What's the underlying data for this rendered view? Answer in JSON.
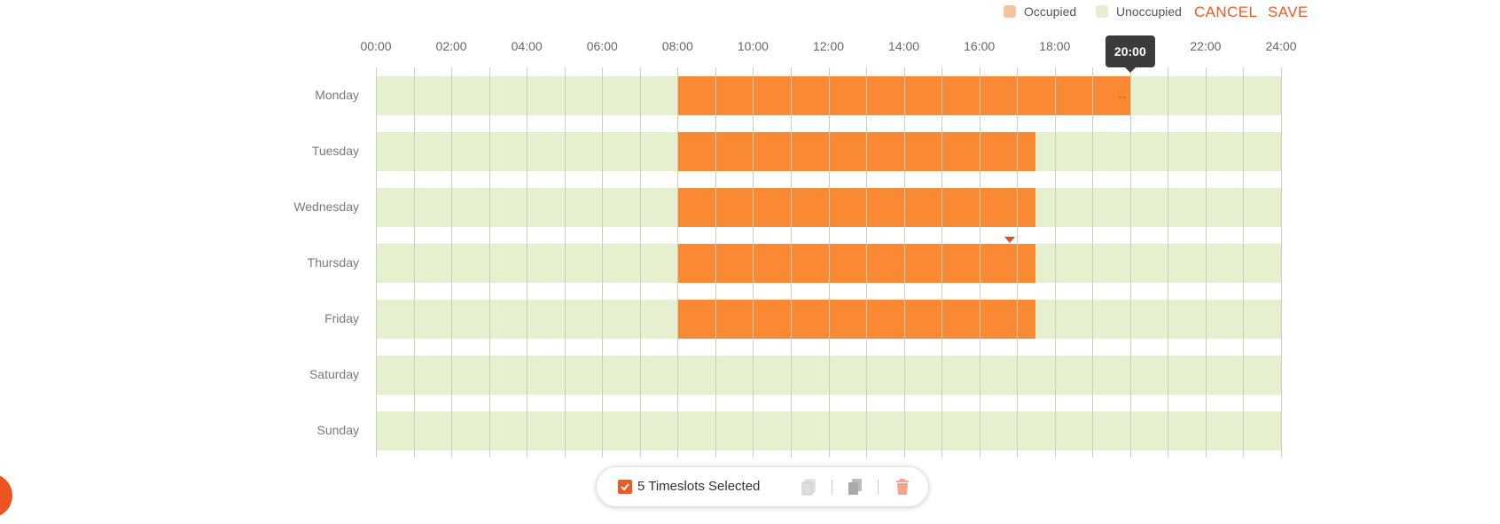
{
  "legend": {
    "occupied": "Occupied",
    "unoccupied": "Unoccupied",
    "occupied_color": "#f7c29f",
    "unoccupied_color": "#e3efd0"
  },
  "actions": {
    "cancel": "CANCEL",
    "save": "SAVE"
  },
  "colors": {
    "accent": "#ee5a24",
    "slot": "#f98933",
    "track": "#e5f0cf"
  },
  "hours": [
    "00:00",
    "02:00",
    "04:00",
    "06:00",
    "08:00",
    "10:00",
    "12:00",
    "14:00",
    "16:00",
    "18:00",
    "20:00",
    "22:00",
    "24:00"
  ],
  "days": [
    {
      "name": "Monday",
      "slot": {
        "start": 8,
        "end": 20
      }
    },
    {
      "name": "Tuesday",
      "slot": {
        "start": 8,
        "end": 17.5
      }
    },
    {
      "name": "Wednesday",
      "slot": {
        "start": 8,
        "end": 17.5
      }
    },
    {
      "name": "Thursday",
      "slot": {
        "start": 8,
        "end": 17.5
      }
    },
    {
      "name": "Friday",
      "slot": {
        "start": 8,
        "end": 17.5
      }
    },
    {
      "name": "Saturday",
      "slot": null
    },
    {
      "name": "Sunday",
      "slot": null
    }
  ],
  "tooltip": {
    "text": "20:00"
  },
  "selection": {
    "checked": true,
    "label": "5 Timeslots Selected",
    "tools": [
      "copy-icon",
      "paste-icon",
      "trash-icon"
    ]
  }
}
